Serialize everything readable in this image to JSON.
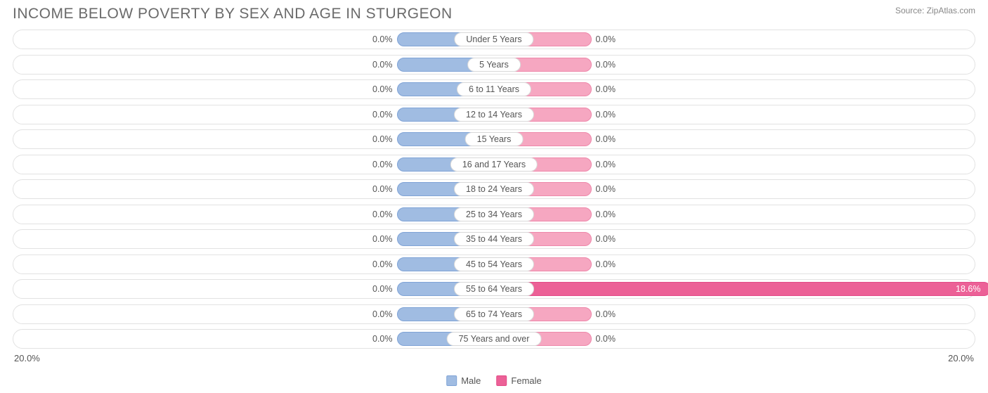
{
  "title": "INCOME BELOW POVERTY BY SEX AND AGE IN STURGEON",
  "source": "Source: ZipAtlas.com",
  "axis_max_percent": 20.0,
  "axis_label_left": "20.0%",
  "axis_label_right": "20.0%",
  "min_bar_percent": 2.0,
  "colors": {
    "male_fill": "#a0bce2",
    "male_border": "#7fa3d6",
    "female_fill": "#f6a7c1",
    "female_border": "#ee87aa",
    "female_highlight_fill": "#ec6197",
    "female_highlight_border": "#e34a87",
    "track_border": "#e2e2e2",
    "text": "#555555",
    "title_text": "#6a6a6a",
    "source_text": "#888888",
    "background": "#ffffff"
  },
  "legend": {
    "male": "Male",
    "female": "Female"
  },
  "rows": [
    {
      "label": "Under 5 Years",
      "male": 0.0,
      "female": 0.0
    },
    {
      "label": "5 Years",
      "male": 0.0,
      "female": 0.0
    },
    {
      "label": "6 to 11 Years",
      "male": 0.0,
      "female": 0.0
    },
    {
      "label": "12 to 14 Years",
      "male": 0.0,
      "female": 0.0
    },
    {
      "label": "15 Years",
      "male": 0.0,
      "female": 0.0
    },
    {
      "label": "16 and 17 Years",
      "male": 0.0,
      "female": 0.0
    },
    {
      "label": "18 to 24 Years",
      "male": 0.0,
      "female": 0.0
    },
    {
      "label": "25 to 34 Years",
      "male": 0.0,
      "female": 0.0
    },
    {
      "label": "35 to 44 Years",
      "male": 0.0,
      "female": 0.0
    },
    {
      "label": "45 to 54 Years",
      "male": 0.0,
      "female": 0.0
    },
    {
      "label": "55 to 64 Years",
      "male": 0.0,
      "female": 18.6
    },
    {
      "label": "65 to 74 Years",
      "male": 0.0,
      "female": 0.0
    },
    {
      "label": "75 Years and over",
      "male": 0.0,
      "female": 0.0
    }
  ]
}
